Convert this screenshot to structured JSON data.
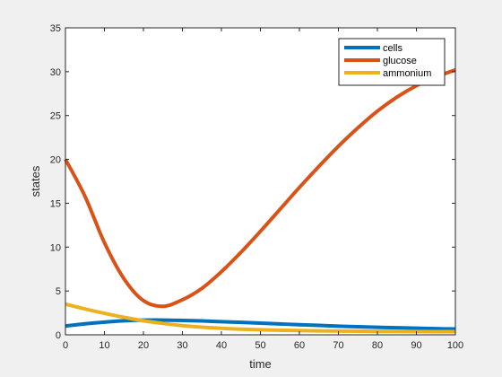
{
  "chart_data": {
    "type": "line",
    "title": "",
    "xlabel": "time",
    "ylabel": "states",
    "xlim": [
      0,
      100
    ],
    "ylim": [
      0,
      35
    ],
    "xticks": [
      0,
      10,
      20,
      30,
      40,
      50,
      60,
      70,
      80,
      90,
      100
    ],
    "yticks": [
      0,
      5,
      10,
      15,
      20,
      25,
      30,
      35
    ],
    "grid": false,
    "legend_position": "top-right",
    "x": [
      0,
      5,
      10,
      15,
      20,
      25,
      30,
      35,
      40,
      45,
      50,
      55,
      60,
      65,
      70,
      75,
      80,
      85,
      90,
      95,
      100
    ],
    "series": [
      {
        "name": "cells",
        "color": "#0072BD",
        "values": [
          1.0,
          1.25,
          1.45,
          1.6,
          1.67,
          1.68,
          1.64,
          1.58,
          1.5,
          1.42,
          1.33,
          1.24,
          1.15,
          1.07,
          0.99,
          0.92,
          0.86,
          0.8,
          0.75,
          0.7,
          0.66
        ]
      },
      {
        "name": "glucose",
        "color": "#D95319",
        "values": [
          20.0,
          15.8,
          10.5,
          6.4,
          3.9,
          3.25,
          4.0,
          5.3,
          7.2,
          9.4,
          11.8,
          14.3,
          16.8,
          19.2,
          21.5,
          23.6,
          25.5,
          27.1,
          28.4,
          29.4,
          30.2
        ]
      },
      {
        "name": "ammonium",
        "color": "#EDB120",
        "values": [
          3.5,
          2.95,
          2.45,
          2.0,
          1.6,
          1.3,
          1.05,
          0.87,
          0.74,
          0.64,
          0.57,
          0.52,
          0.48,
          0.45,
          0.43,
          0.41,
          0.39,
          0.38,
          0.37,
          0.36,
          0.36
        ]
      }
    ]
  }
}
